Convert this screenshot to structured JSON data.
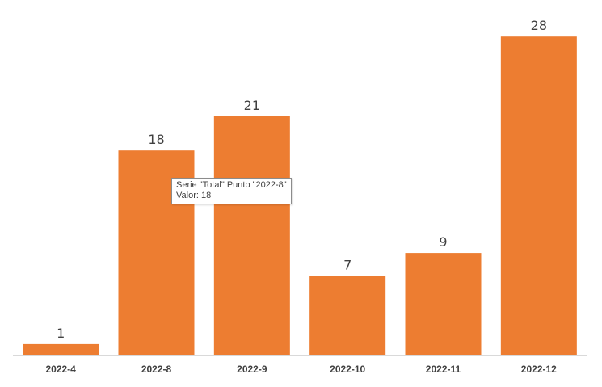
{
  "chart_data": {
    "type": "bar",
    "categories": [
      "2022-4",
      "2022-8",
      "2022-9",
      "2022-10",
      "2022-11",
      "2022-12"
    ],
    "values": [
      1,
      18,
      21,
      7,
      9,
      28
    ],
    "ylim": [
      0,
      30
    ],
    "grid": false,
    "legend": "none",
    "data_labels": true,
    "bar_color": "#ed7d31",
    "axis_color": "#d9d9d9"
  },
  "tooltip": {
    "line1": "Serie \"Total\" Punto \"2022-8\"",
    "line2": "Valor: 18"
  }
}
